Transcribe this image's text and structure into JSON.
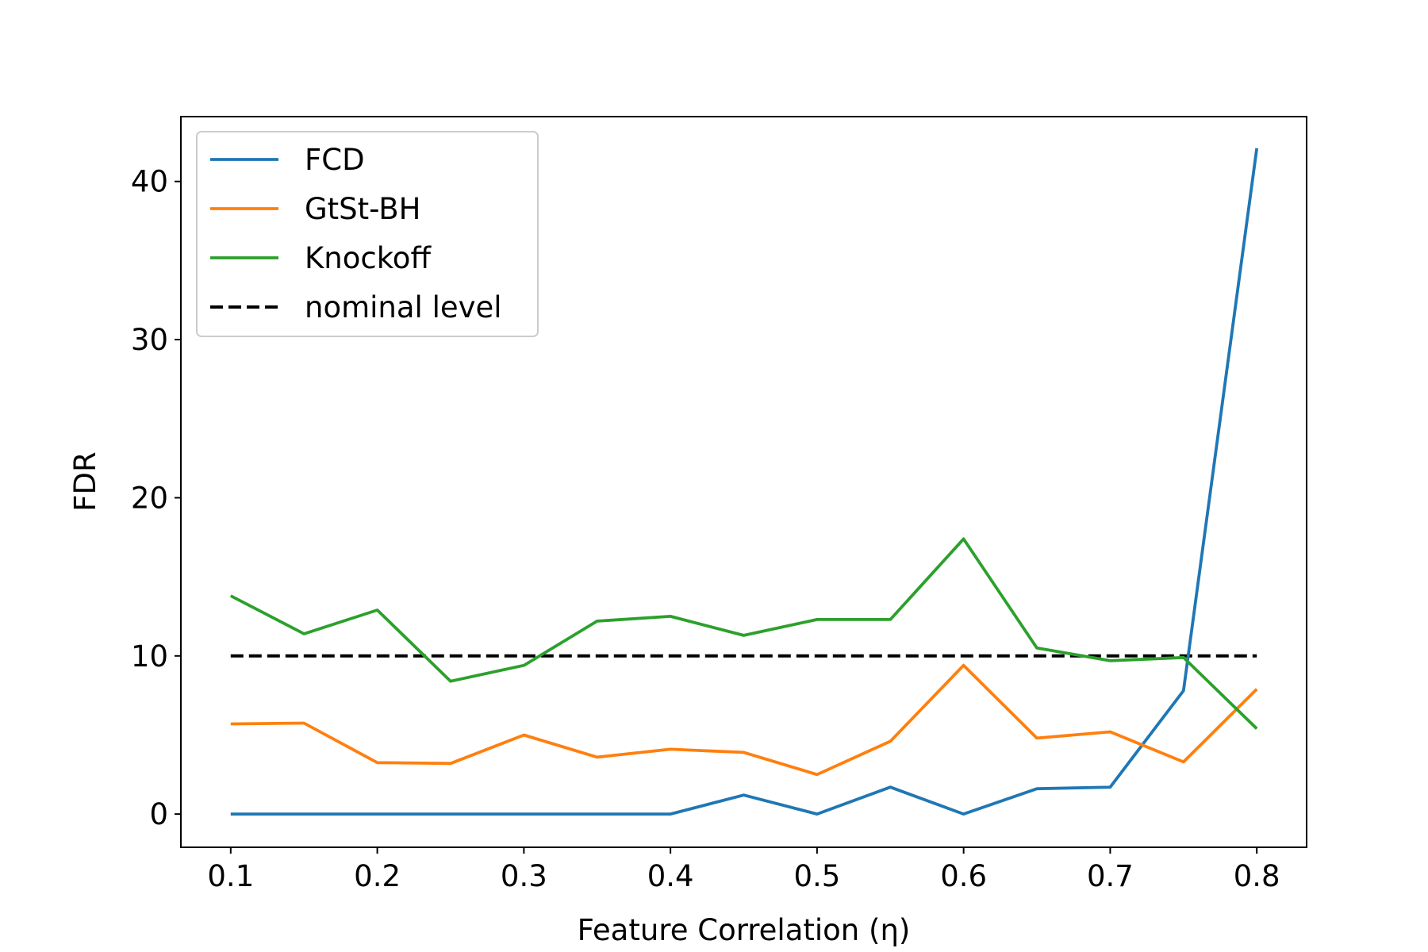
{
  "chart_data": {
    "type": "line",
    "title": "",
    "xlabel": "Feature Correlation (η)",
    "ylabel": "FDR",
    "x": [
      0.1,
      0.15,
      0.2,
      0.25,
      0.3,
      0.35,
      0.4,
      0.45,
      0.5,
      0.55,
      0.6,
      0.65,
      0.7,
      0.75,
      0.8
    ],
    "xlim": [
      0.066,
      0.834
    ],
    "ylim": [
      -2.1,
      44.1
    ],
    "xticks": [
      0.1,
      0.2,
      0.3,
      0.4,
      0.5,
      0.6,
      0.7,
      0.8
    ],
    "xtick_labels": [
      "0.1",
      "0.2",
      "0.3",
      "0.4",
      "0.5",
      "0.6",
      "0.7",
      "0.8"
    ],
    "yticks": [
      0,
      10,
      20,
      30,
      40
    ],
    "ytick_labels": [
      "0",
      "10",
      "20",
      "30",
      "40"
    ],
    "grid": false,
    "legend_position": "top-left",
    "series": [
      {
        "name": "FCD",
        "color": "#1f77b4",
        "dash": "solid",
        "values": [
          0,
          0,
          0,
          0,
          0,
          0,
          0,
          1.2,
          0,
          1.7,
          0,
          1.6,
          1.7,
          7.8,
          42.1
        ]
      },
      {
        "name": "GtSt-BH",
        "color": "#ff7f0e",
        "dash": "solid",
        "values": [
          5.7,
          5.75,
          3.25,
          3.2,
          5.0,
          3.6,
          4.1,
          3.9,
          2.5,
          4.6,
          9.4,
          4.8,
          5.2,
          3.3,
          7.9
        ]
      },
      {
        "name": "Knockoff",
        "color": "#2ca02c",
        "dash": "solid",
        "values": [
          13.8,
          11.4,
          12.9,
          8.4,
          9.4,
          12.2,
          12.5,
          11.3,
          12.3,
          12.3,
          17.4,
          10.5,
          9.7,
          9.9,
          5.4
        ]
      },
      {
        "name": "nominal level",
        "color": "#000000",
        "dash": "dashed",
        "values": [
          10,
          10,
          10,
          10,
          10,
          10,
          10,
          10,
          10,
          10,
          10,
          10,
          10,
          10,
          10
        ]
      }
    ]
  }
}
